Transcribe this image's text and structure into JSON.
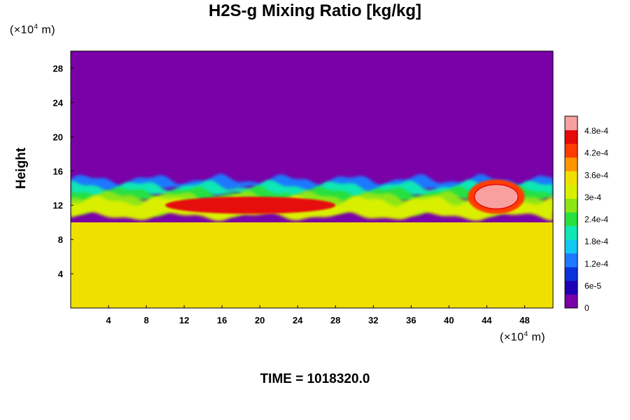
{
  "chart_data": {
    "type": "heatmap",
    "title": "H2S-g Mixing Ratio [kg/kg]",
    "ylabel": "Height",
    "xlabel": "",
    "x_unit": "(×10⁴ m)",
    "y_unit": "(×10⁴ m)",
    "x_unit_text": {
      "pre": "(×10",
      "sup": "4",
      "post": " m)"
    },
    "y_unit_text": {
      "pre": "(×10",
      "sup": "4",
      "post": " m)"
    },
    "xlim": [
      0,
      51
    ],
    "ylim": [
      0,
      30
    ],
    "x_ticks": [
      4,
      8,
      12,
      16,
      20,
      24,
      28,
      32,
      36,
      40,
      44,
      48
    ],
    "x_tick_labels": [
      "4",
      "8",
      "12",
      "16",
      "20",
      "24",
      "28",
      "32",
      "36",
      "40",
      "44",
      "48"
    ],
    "y_ticks": [
      4,
      8,
      12,
      16,
      20,
      24,
      28
    ],
    "y_tick_labels": [
      "4",
      "8",
      "12",
      "16",
      "20",
      "24",
      "28"
    ],
    "colorbar": {
      "vmin": 0,
      "vmax": 0.00052,
      "tick_values": [
        0,
        6e-05,
        0.00012,
        0.00018,
        0.00024,
        0.0003,
        0.00036,
        0.00042,
        0.00048
      ],
      "tick_labels": [
        "0",
        "6e-5",
        "1.2e-4",
        "1.8e-4",
        "2.4e-4",
        "3e-4",
        "3.6e-4",
        "4.2e-4",
        "4.8e-4"
      ],
      "colors": [
        "#7a00a8",
        "#2000b4",
        "#0a32dc",
        "#1e78ff",
        "#10c8f0",
        "#10e8b4",
        "#28e040",
        "#8ce614",
        "#d8f000",
        "#f0e000",
        "#ff9600",
        "#ff3c00",
        "#e60a0a",
        "#f8a0a0"
      ]
    },
    "regions": {
      "upper_value": 0.0,
      "lower_value": 0.00035,
      "interface_height_range": [
        11.5,
        15
      ],
      "high_concentration_band": {
        "x_range": [
          10,
          28
        ],
        "height_range": [
          11,
          13
        ],
        "value": 0.00046
      },
      "peak_patch": {
        "x_range": [
          42,
          48
        ],
        "height_range": [
          11,
          15
        ],
        "value": 0.0005
      }
    }
  },
  "footer": {
    "time_label": "TIME = 1018320.0"
  }
}
